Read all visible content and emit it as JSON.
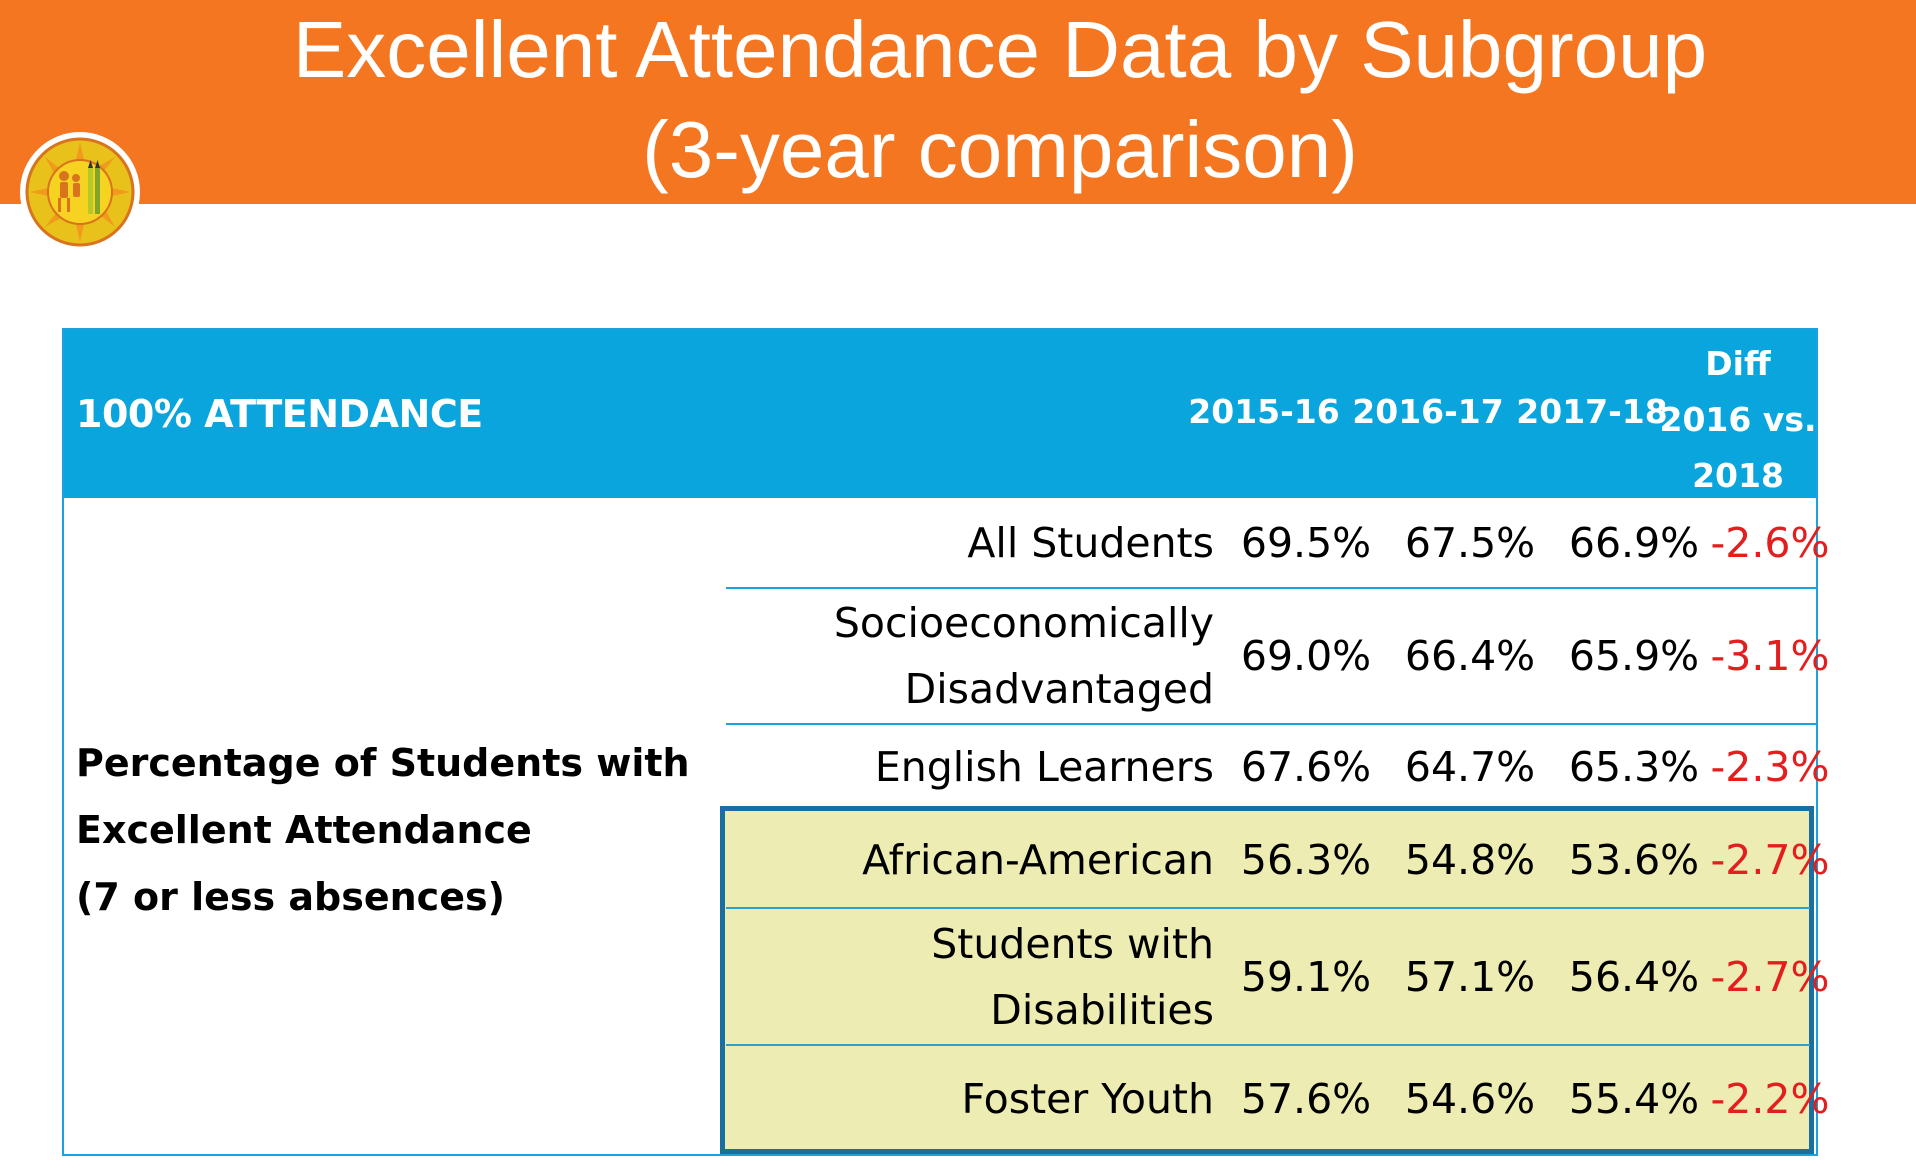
{
  "slide": {
    "title_line1": "Excellent Attendance Data by Subgroup",
    "title_line2": "(3-year comparison)",
    "logo_icon": "district-seal-icon",
    "banner_color": "#F47621"
  },
  "table": {
    "header": {
      "main": "100% ATTENDANCE",
      "years": [
        "2015-16",
        "2016-17",
        "2017-18"
      ],
      "diff_line1": "Diff",
      "diff_line2": "2016 vs.",
      "diff_line3": "2018"
    },
    "category": {
      "line1": "Percentage of Students with",
      "line2": "Excellent Attendance",
      "line3": "(7 or less absences)"
    },
    "rows": [
      {
        "label_line1": "All Students",
        "label_line2": "",
        "v1": "69.5%",
        "v2": "67.5%",
        "v3": "66.9%",
        "diff": "-2.6%"
      },
      {
        "label_line1": "Socioeconomically",
        "label_line2": "Disadvantaged",
        "v1": "69.0%",
        "v2": "66.4%",
        "v3": "65.9%",
        "diff": "-3.1%"
      },
      {
        "label_line1": "English Learners",
        "label_line2": "",
        "v1": "67.6%",
        "v2": "64.7%",
        "v3": "65.3%",
        "diff": "-2.3%"
      },
      {
        "label_line1": "African-American",
        "label_line2": "",
        "v1": "56.3%",
        "v2": "54.8%",
        "v3": "53.6%",
        "diff": "-2.7%"
      },
      {
        "label_line1": "Students with",
        "label_line2": "Disabilities",
        "v1": "59.1%",
        "v2": "57.1%",
        "v3": "56.4%",
        "diff": "-2.7%"
      },
      {
        "label_line1": "Foster Youth",
        "label_line2": "",
        "v1": "57.6%",
        "v2": "54.6%",
        "v3": "55.4%",
        "diff": "-2.2%"
      }
    ],
    "colors": {
      "header_bg": "#0AA5DC",
      "negative": "#E31E1E",
      "highlight_bg": "#EDEDB3",
      "highlight_border": "#1A6EA0"
    }
  }
}
